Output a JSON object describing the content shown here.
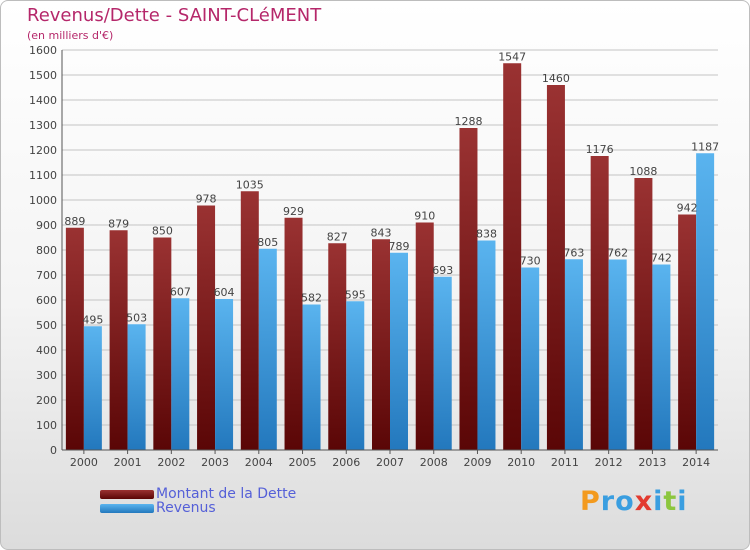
{
  "chart_data": {
    "type": "bar",
    "title": "Revenus/Dette - SAINT-CLéMENT",
    "subtitle": "(en milliers d'€)",
    "categories": [
      "2000",
      "2001",
      "2002",
      "2003",
      "2004",
      "2005",
      "2006",
      "2007",
      "2008",
      "2009",
      "2010",
      "2011",
      "2012",
      "2013",
      "2014"
    ],
    "series": [
      {
        "name": "Montant de la Dette",
        "color": "#7a1a1a",
        "values": [
          889,
          879,
          850,
          978,
          1035,
          929,
          827,
          843,
          910,
          1288,
          1547,
          1460,
          1176,
          1088,
          942
        ]
      },
      {
        "name": "Revenus",
        "color": "#3a9ee0",
        "values": [
          495,
          503,
          607,
          604,
          805,
          582,
          595,
          789,
          693,
          838,
          730,
          763,
          762,
          742,
          1187
        ]
      }
    ],
    "ylim": [
      0,
      1600
    ],
    "yticks": [
      0,
      100,
      200,
      300,
      400,
      500,
      600,
      700,
      800,
      900,
      1000,
      1100,
      1200,
      1300,
      1400,
      1500,
      1600
    ],
    "grid": true,
    "legend_position": "bottom-left"
  },
  "logo": {
    "letters": [
      {
        "char": "P",
        "color": "#f39a1e"
      },
      {
        "char": "r",
        "color": "#3a9ee0"
      },
      {
        "char": "o",
        "color": "#3a9ee0"
      },
      {
        "char": "x",
        "color": "#e23a2f"
      },
      {
        "char": "i",
        "color": "#3a9ee0"
      },
      {
        "char": "t",
        "color": "#8cc63e"
      },
      {
        "char": "i",
        "color": "#3a9ee0"
      }
    ]
  }
}
